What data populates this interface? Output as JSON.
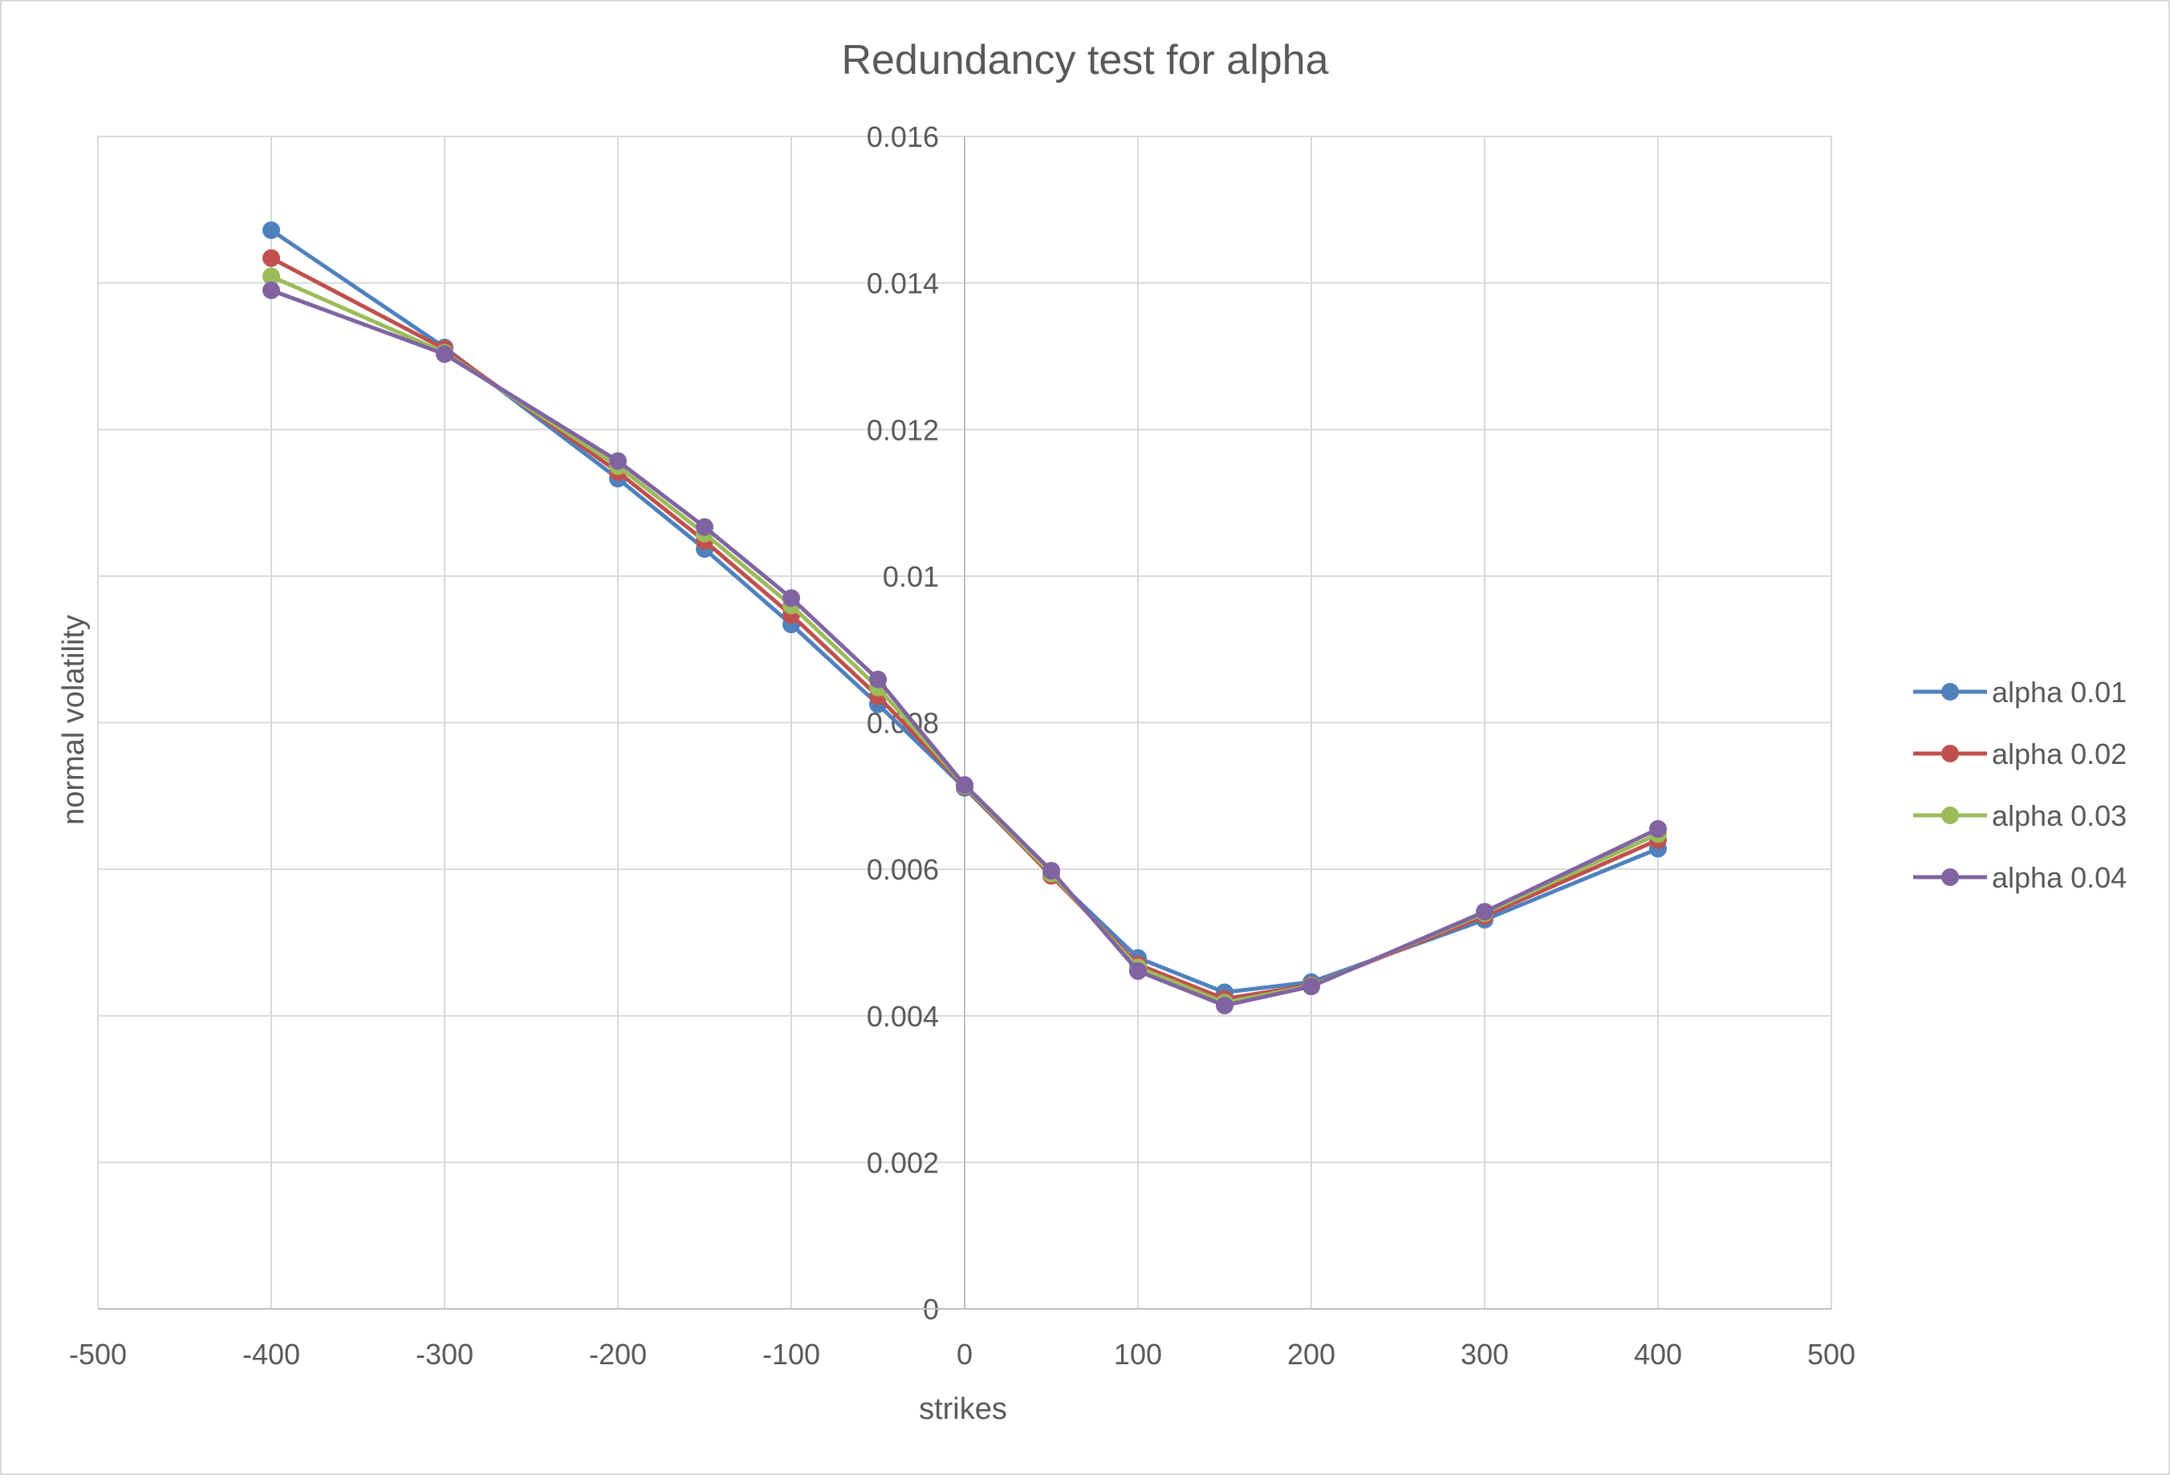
{
  "chart_data": {
    "type": "scatter",
    "mode": "lines+markers",
    "title": "Redundancy test for alpha",
    "xlabel": "strikes",
    "ylabel": "normal volatility",
    "xlim": [
      -500,
      500
    ],
    "ylim": [
      0,
      0.016
    ],
    "x_ticks": [
      "-500",
      "-400",
      "-300",
      "-200",
      "-100",
      "0",
      "100",
      "200",
      "300",
      "400",
      "500"
    ],
    "y_ticks": [
      "0",
      "0.002",
      "0.004",
      "0.006",
      "0.008",
      "0.01",
      "0.012",
      "0.014",
      "0.016"
    ],
    "grid": true,
    "legend_position": "right",
    "x": [
      -400,
      -300,
      -200,
      -150,
      -100,
      -50,
      0,
      50,
      100,
      150,
      200,
      300,
      400
    ],
    "series": [
      {
        "name": "alpha 0.01",
        "color": "#4f81bd",
        "values": [
          0.01472,
          0.01312,
          0.01133,
          0.01037,
          0.00934,
          0.00825,
          0.00711,
          0.00592,
          0.00479,
          0.00432,
          0.00446,
          0.00531,
          0.00628
        ]
      },
      {
        "name": "alpha 0.02",
        "color": "#c0504d",
        "values": [
          0.01434,
          0.0131,
          0.01142,
          0.01048,
          0.00947,
          0.00836,
          0.00713,
          0.00591,
          0.0047,
          0.00423,
          0.00442,
          0.00536,
          0.0064
        ]
      },
      {
        "name": "alpha 0.03",
        "color": "#9bbb59",
        "values": [
          0.01409,
          0.01305,
          0.0115,
          0.01058,
          0.0096,
          0.00848,
          0.00714,
          0.00594,
          0.00466,
          0.00418,
          0.00441,
          0.0054,
          0.00648
        ]
      },
      {
        "name": "alpha 0.04",
        "color": "#8064a2",
        "values": [
          0.0139,
          0.01303,
          0.01157,
          0.01067,
          0.0097,
          0.00859,
          0.00715,
          0.00598,
          0.00461,
          0.00414,
          0.0044,
          0.00542,
          0.00655
        ]
      }
    ]
  }
}
